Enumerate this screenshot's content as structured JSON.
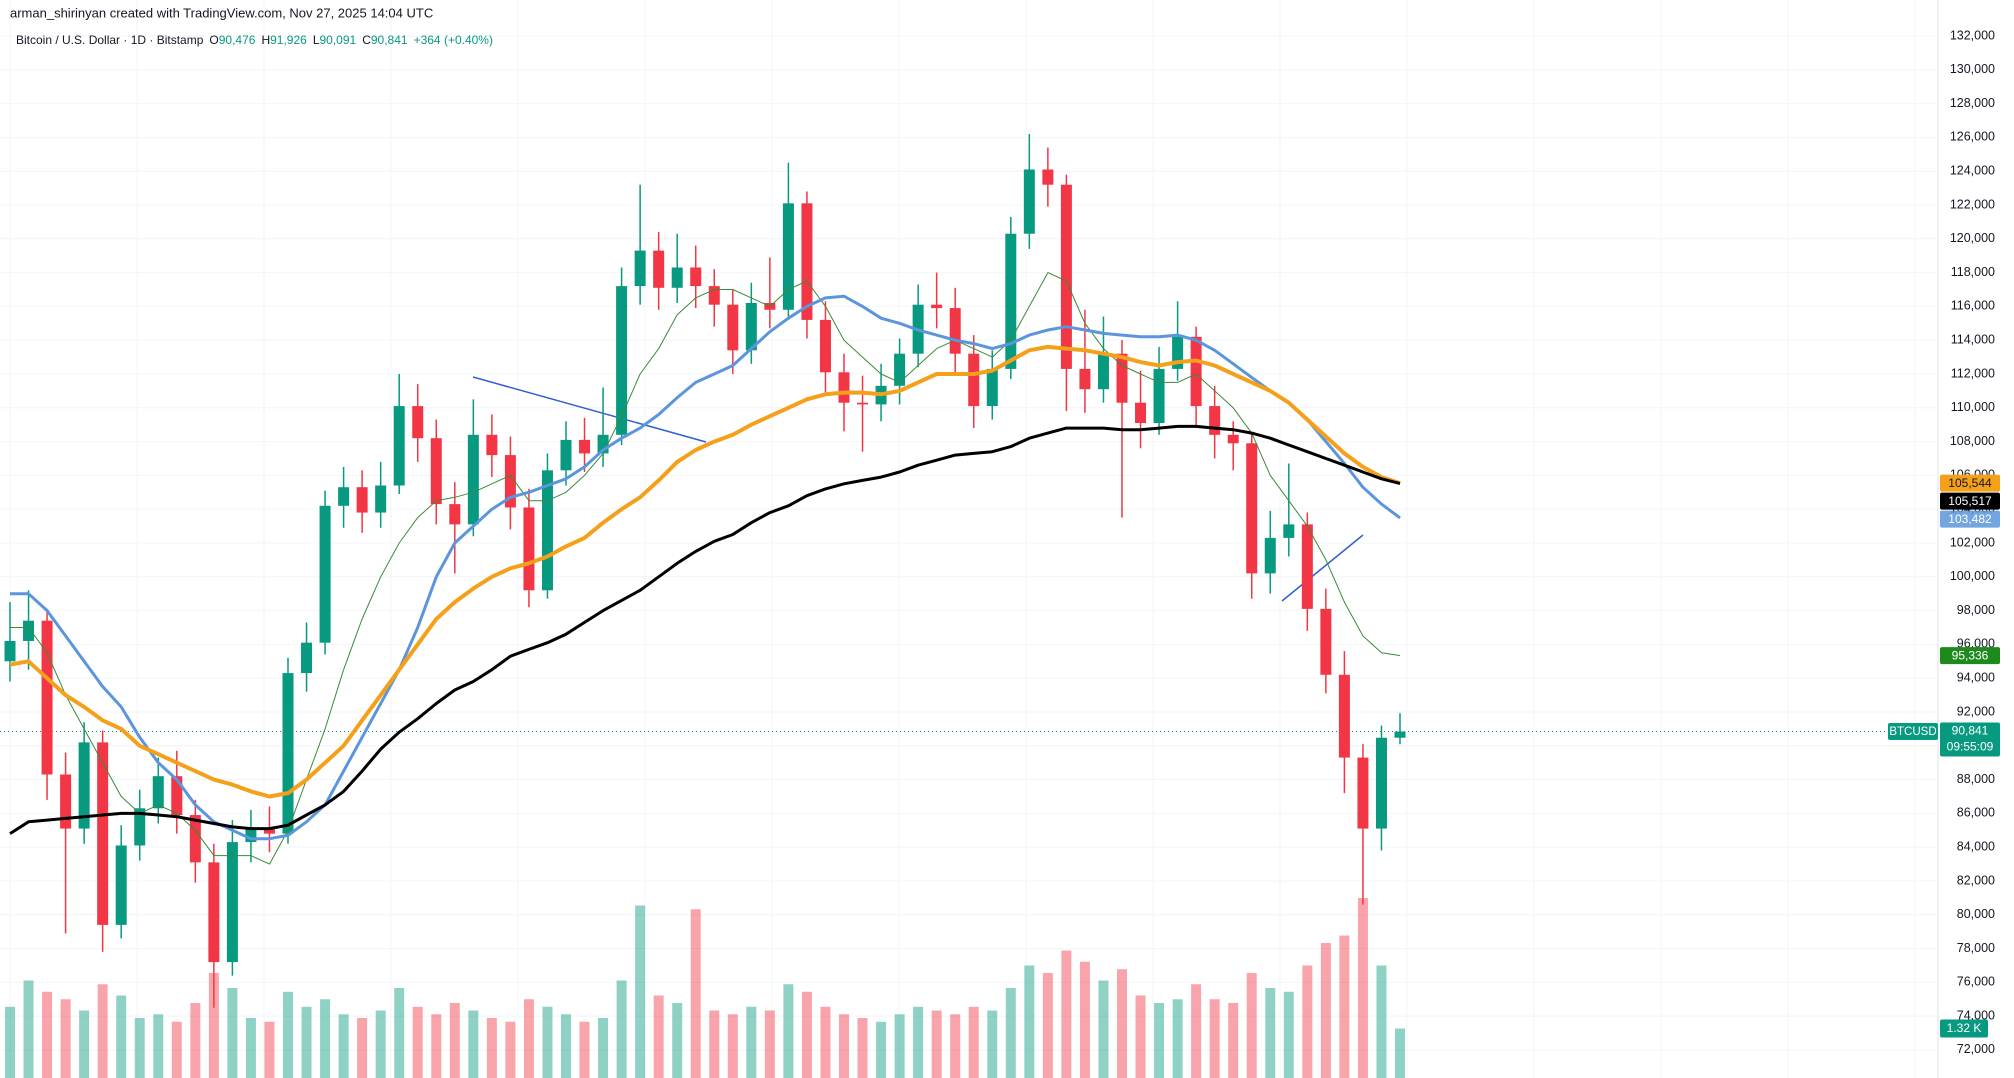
{
  "header": {
    "author_line": "arman_shirinyan created with TradingView.com, Nov 27, 2025 14:04 UTC"
  },
  "legend": {
    "symbol": "Bitcoin / U.S. Dollar · 1D · Bitstamp",
    "o_label": "O",
    "open": "90,476",
    "h_label": "H",
    "high": "91,926",
    "l_label": "L",
    "low": "90,091",
    "c_label": "C",
    "close": "90,841",
    "change": "+364 (+0.40%)"
  },
  "chart_data": {
    "type": "candlestick",
    "up_color": "#089981",
    "down_color": "#f23645",
    "ylim": [
      70340,
      134130
    ],
    "vlim": [
      0,
      8000
    ],
    "grid": true,
    "yticks": [
      {
        "value": 72000,
        "label": "72,000"
      },
      {
        "value": 74000,
        "label": "74,000"
      },
      {
        "value": 76000,
        "label": "76,000"
      },
      {
        "value": 78000,
        "label": "78,000"
      },
      {
        "value": 80000,
        "label": "80,000"
      },
      {
        "value": 82000,
        "label": "82,000"
      },
      {
        "value": 84000,
        "label": "84,000"
      },
      {
        "value": 86000,
        "label": "86,000"
      },
      {
        "value": 88000,
        "label": "88,000"
      },
      {
        "value": 90000,
        "label": "90,000"
      },
      {
        "value": 92000,
        "label": "92,000"
      },
      {
        "value": 94000,
        "label": "94,000"
      },
      {
        "value": 96000,
        "label": "96,000"
      },
      {
        "value": 98000,
        "label": "98,000"
      },
      {
        "value": 100000,
        "label": "100,000"
      },
      {
        "value": 102000,
        "label": "102,000"
      },
      {
        "value": 104000,
        "label": "104,000"
      },
      {
        "value": 106000,
        "label": "106,000"
      },
      {
        "value": 108000,
        "label": "108,000"
      },
      {
        "value": 110000,
        "label": "110,000"
      },
      {
        "value": 112000,
        "label": "112,000"
      },
      {
        "value": 114000,
        "label": "114,000"
      },
      {
        "value": 116000,
        "label": "116,000"
      },
      {
        "value": 118000,
        "label": "118,000"
      },
      {
        "value": 120000,
        "label": "120,000"
      },
      {
        "value": 122000,
        "label": "122,000"
      },
      {
        "value": 124000,
        "label": "124,000"
      },
      {
        "value": 126000,
        "label": "126,000"
      },
      {
        "value": 128000,
        "label": "128,000"
      },
      {
        "value": 130000,
        "label": "130,000"
      },
      {
        "value": 132000,
        "label": "132,000"
      }
    ],
    "open": [
      95000,
      96200,
      97400,
      88300,
      85100,
      90200,
      79400,
      84100,
      86300,
      88200,
      85900,
      83100,
      77200,
      84300,
      85100,
      84800,
      94300,
      96100,
      104200,
      105300,
      103800,
      105400,
      110100,
      108200,
      104300,
      103100,
      108400,
      107200,
      104100,
      99200,
      106300,
      108100,
      107300,
      108400,
      117200,
      119300,
      117100,
      118300,
      117200,
      116100,
      113400,
      116200,
      115800,
      122100,
      115200,
      112100,
      110300,
      110200,
      111300,
      113200,
      116100,
      115900,
      113200,
      110100,
      112300,
      120300,
      124100,
      123200,
      112300,
      111100,
      113200,
      110300,
      109100,
      112300,
      114200,
      110100,
      108400,
      107900,
      100200,
      102300,
      103100,
      98100,
      94200,
      89300,
      85100,
      90476
    ],
    "high": [
      98500,
      99200,
      98100,
      89600,
      91400,
      90900,
      85300,
      87400,
      89300,
      89700,
      86800,
      84200,
      85600,
      86200,
      86400,
      95200,
      97300,
      105100,
      106500,
      106300,
      106800,
      112000,
      111400,
      109300,
      105600,
      110500,
      109600,
      108300,
      105200,
      107300,
      109200,
      109400,
      111200,
      118300,
      123200,
      120400,
      120300,
      119600,
      118200,
      117000,
      117400,
      118900,
      124500,
      122800,
      116300,
      113200,
      111900,
      112600,
      114100,
      117300,
      118000,
      117100,
      114300,
      113400,
      121300,
      126200,
      125400,
      123800,
      115800,
      115400,
      114000,
      112200,
      113600,
      116300,
      114800,
      111300,
      109200,
      108500,
      103900,
      106700,
      103800,
      99300,
      95600,
      90100,
      91200,
      91926
    ],
    "low": [
      93800,
      94500,
      86800,
      78900,
      84200,
      77800,
      78600,
      83200,
      85400,
      84800,
      81900,
      74500,
      76400,
      83100,
      83700,
      84200,
      93200,
      95400,
      102900,
      102600,
      102900,
      104900,
      106800,
      103100,
      100200,
      102400,
      105900,
      102800,
      98200,
      98700,
      105400,
      106200,
      106500,
      107800,
      116100,
      115800,
      116200,
      115900,
      114800,
      112000,
      112600,
      114700,
      115200,
      114100,
      110800,
      108600,
      107400,
      109200,
      110200,
      112400,
      114700,
      112100,
      108800,
      109300,
      111700,
      119400,
      121900,
      109800,
      109700,
      110300,
      103500,
      107600,
      108400,
      111600,
      108900,
      107000,
      106300,
      98700,
      99000,
      101200,
      96800,
      93100,
      87200,
      80600,
      83800,
      90091
    ],
    "close": [
      96200,
      97400,
      88300,
      85100,
      90200,
      79400,
      84100,
      86300,
      88200,
      85900,
      83100,
      77200,
      84300,
      85100,
      84800,
      94300,
      96100,
      104200,
      105300,
      103800,
      105400,
      110100,
      108200,
      104300,
      103100,
      108400,
      107200,
      104100,
      99200,
      106300,
      108100,
      107300,
      108400,
      117200,
      119300,
      117100,
      118300,
      117200,
      116100,
      113400,
      116200,
      115800,
      122100,
      115200,
      112100,
      110300,
      110200,
      111300,
      113200,
      116100,
      115900,
      113200,
      110100,
      112300,
      120300,
      124100,
      123200,
      112300,
      111100,
      113200,
      110300,
      109100,
      112300,
      114200,
      110100,
      108400,
      107900,
      100200,
      102300,
      103100,
      98100,
      94200,
      89300,
      85100,
      90476,
      90841
    ],
    "volume": [
      1900,
      2600,
      2300,
      2100,
      1800,
      2500,
      2200,
      1600,
      1700,
      1500,
      2000,
      2800,
      2400,
      1600,
      1500,
      2300,
      1900,
      2100,
      1700,
      1600,
      1800,
      2400,
      1900,
      1700,
      2000,
      1800,
      1600,
      1500,
      2100,
      1900,
      1700,
      1500,
      1600,
      2600,
      4600,
      2200,
      2000,
      4500,
      1800,
      1700,
      1900,
      1800,
      2500,
      2300,
      1900,
      1700,
      1600,
      1500,
      1700,
      1900,
      1800,
      1700,
      1900,
      1800,
      2400,
      3000,
      2800,
      3400,
      3100,
      2600,
      2900,
      2200,
      2000,
      2100,
      2500,
      2100,
      2000,
      2800,
      2400,
      2300,
      3000,
      3600,
      3800,
      4800,
      3000,
      1320
    ],
    "volume_label": "1.32 K",
    "overlays": [
      {
        "color": "#3a8a3a",
        "width": 1,
        "last_label": "95,336",
        "values": [
          97000,
          97000,
          95500,
          93000,
          91000,
          89000,
          87000,
          86000,
          86500,
          86000,
          85000,
          83500,
          83500,
          83500,
          83000,
          85000,
          88000,
          91000,
          94500,
          97500,
          100000,
          102000,
          103500,
          104500,
          104700,
          105000,
          105500,
          106000,
          104500,
          104500,
          105000,
          106000,
          107300,
          109500,
          112000,
          113500,
          115500,
          116500,
          117000,
          117000,
          116500,
          116000,
          117000,
          117500,
          116000,
          114000,
          113000,
          112000,
          111500,
          112500,
          113500,
          114000,
          113500,
          113000,
          114000,
          116000,
          118000,
          117500,
          115000,
          113500,
          112500,
          112000,
          111500,
          111500,
          112000,
          111000,
          110000,
          108500,
          106000,
          104500,
          103000,
          101000,
          98500,
          96500,
          95500,
          95336
        ]
      },
      {
        "color": "#5b95dc",
        "width": 3,
        "last_label": "103,482",
        "values": [
          99000,
          99000,
          98000,
          96500,
          95000,
          93500,
          92300,
          90500,
          89000,
          88000,
          86500,
          85500,
          85000,
          84500,
          84500,
          84700,
          85500,
          86500,
          88500,
          90500,
          92500,
          94500,
          97000,
          100000,
          102000,
          103000,
          104000,
          104700,
          105000,
          105400,
          105800,
          106500,
          107500,
          108200,
          108800,
          109600,
          110600,
          111500,
          112000,
          112500,
          113500,
          114500,
          115300,
          116000,
          116500,
          116600,
          116000,
          115300,
          115000,
          114600,
          114300,
          114000,
          113800,
          113500,
          113800,
          114300,
          114600,
          114800,
          114600,
          114400,
          114300,
          114200,
          114200,
          114300,
          114000,
          113400,
          112600,
          111800,
          111000,
          110300,
          109300,
          108000,
          106700,
          105300,
          104300,
          103482
        ]
      },
      {
        "color": "#f5a01a",
        "width": 4,
        "last_label": "105,544",
        "values": [
          94800,
          95000,
          94000,
          93000,
          92300,
          91500,
          91000,
          90000,
          89500,
          89000,
          88500,
          88000,
          87700,
          87300,
          87000,
          87200,
          88000,
          89000,
          90000,
          91500,
          93000,
          94500,
          96000,
          97500,
          98500,
          99300,
          100000,
          100500,
          100800,
          101200,
          101800,
          102300,
          103200,
          104000,
          104700,
          105700,
          106800,
          107500,
          108000,
          108400,
          109000,
          109500,
          110000,
          110500,
          110800,
          110900,
          110900,
          110800,
          111000,
          111500,
          112000,
          112000,
          112000,
          112200,
          112800,
          113400,
          113600,
          113500,
          113400,
          113200,
          113000,
          112700,
          112500,
          112700,
          112800,
          112500,
          112000,
          111500,
          111000,
          110300,
          109300,
          108300,
          107300,
          106500,
          105900,
          105544
        ]
      },
      {
        "color": "#000000",
        "width": 3,
        "last_label": "105,517",
        "values": [
          84800,
          85500,
          85600,
          85700,
          85800,
          85900,
          86000,
          86000,
          85900,
          85800,
          85600,
          85400,
          85200,
          85100,
          85100,
          85300,
          85900,
          86500,
          87300,
          88500,
          89800,
          90800,
          91600,
          92500,
          93300,
          93800,
          94500,
          95300,
          95700,
          96100,
          96600,
          97300,
          98000,
          98600,
          99200,
          100000,
          100800,
          101500,
          102100,
          102500,
          103200,
          103800,
          104200,
          104800,
          105200,
          105500,
          105700,
          105900,
          106200,
          106600,
          106900,
          107200,
          107300,
          107400,
          107700,
          108200,
          108500,
          108800,
          108800,
          108800,
          108700,
          108700,
          108800,
          108900,
          108900,
          108800,
          108700,
          108500,
          108200,
          107800,
          107400,
          107000,
          106600,
          106200,
          105800,
          105517
        ]
      }
    ],
    "price_tag": {
      "symbol": "BTCUSD",
      "label": "90,841",
      "countdown": "09:55:09"
    }
  }
}
